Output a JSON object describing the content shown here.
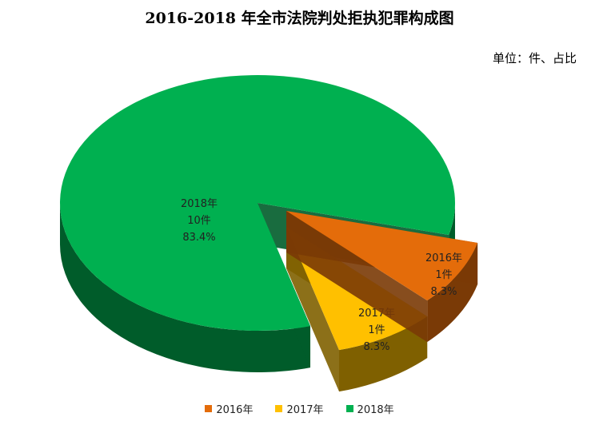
{
  "title": "2016-2018 年全市法院判处拒执犯罪构成图",
  "unit_note": "单位：件、占比",
  "chart_data": {
    "type": "pie",
    "style": "3d-exploded",
    "slices": [
      {
        "label": "2016年",
        "count_label": "1件",
        "percent_label": "8.3%",
        "value": 1,
        "color": "#E46C0A",
        "dark": "#7A3A06"
      },
      {
        "label": "2017年",
        "count_label": "1件",
        "percent_label": "8.3%",
        "value": 1,
        "color": "#FFC000",
        "dark": "#7F6000"
      },
      {
        "label": "2018年",
        "count_label": "10件",
        "percent_label": "83.4%",
        "value": 10,
        "color": "#00B050",
        "dark": "#005C2A"
      }
    ],
    "legend": [
      "2016年",
      "2017年",
      "2018年"
    ],
    "legend_position": "bottom"
  }
}
